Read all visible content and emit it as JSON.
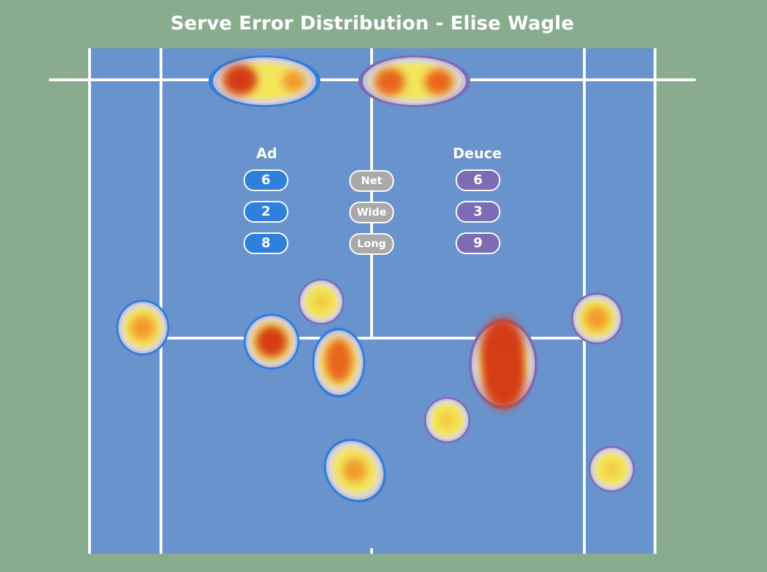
{
  "title": "Serve Error Distribution - Elise Wagle",
  "colors": {
    "background": "#8aac8e",
    "court": "#6893cc",
    "lines": "#ffffff",
    "ad": "#2f7fdc",
    "deuce": "#7d6cb3",
    "category_pill": "#a9a9a9"
  },
  "chart_data": {
    "type": "heatmap",
    "title": "Serve Error Distribution - Elise Wagle",
    "xlabel": "",
    "ylabel": "",
    "categories": [
      "Net",
      "Wide",
      "Long"
    ],
    "series": [
      {
        "name": "Ad",
        "color": "#2f7fdc",
        "values": [
          6,
          2,
          8
        ]
      },
      {
        "name": "Deuce",
        "color": "#7d6cb3",
        "values": [
          6,
          3,
          9
        ]
      }
    ],
    "grid": false,
    "legend": "center"
  },
  "labels": {
    "ad": "Ad",
    "deuce": "Deuce",
    "net": "Net",
    "wide": "Wide",
    "long": "Long",
    "ad_net": "6",
    "ad_wide": "2",
    "ad_long": "8",
    "deuce_net": "6",
    "deuce_wide": "3",
    "deuce_long": "9"
  }
}
